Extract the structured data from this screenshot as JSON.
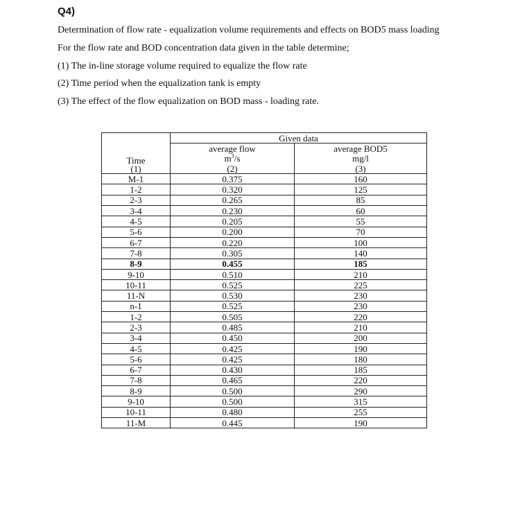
{
  "question_label": "Q4)",
  "lines": [
    "Determination of flow rate - equalization volume requirements and effects on BOD5 mass loading",
    "For the flow rate and BOD concentration data given in the table determine;",
    "(1) The in-line storage volume required to equalize the flow rate",
    "(2) Time period when the equalization tank is empty",
    "(3) The effect of the flow equalization on BOD mass - loading rate."
  ],
  "table": {
    "group_header": "Given data",
    "columns": [
      {
        "name": "Time",
        "unit": "",
        "num": "(1)"
      },
      {
        "name": "average flow",
        "unit_base": "m",
        "unit_sup": "3",
        "unit_rest": "/s",
        "num": "(2)"
      },
      {
        "name": "average BOD5",
        "unit": "mg/l",
        "num": "(3)"
      }
    ],
    "rows": [
      [
        "M-1",
        "0.375",
        "160"
      ],
      [
        "1-2",
        "0.320",
        "125"
      ],
      [
        "2-3",
        "0.265",
        "85"
      ],
      [
        "3-4",
        "0.230",
        "60"
      ],
      [
        "4-5",
        "0.205",
        "55"
      ],
      [
        "5-6",
        "0.200",
        "70"
      ],
      [
        "6-7",
        "0.220",
        "100"
      ],
      [
        "7-8",
        "0.305",
        "140"
      ],
      [
        "8-9",
        "0.455",
        "185"
      ],
      [
        "9-10",
        "0.510",
        "210"
      ],
      [
        "10-11",
        "0.525",
        "225"
      ],
      [
        "11-N",
        "0.530",
        "230"
      ],
      [
        "n-1",
        "0.525",
        "230"
      ],
      [
        "1-2",
        "0.505",
        "220"
      ],
      [
        "2-3",
        "0.485",
        "210"
      ],
      [
        "3-4",
        "0.450",
        "200"
      ],
      [
        "4-5",
        "0.425",
        "190"
      ],
      [
        "5-6",
        "0.425",
        "180"
      ],
      [
        "6-7",
        "0.430",
        "185"
      ],
      [
        "7-8",
        "0.465",
        "220"
      ],
      [
        "8-9",
        "0.500",
        "290"
      ],
      [
        "9-10",
        "0.500",
        "315"
      ],
      [
        "10-11",
        "0.480",
        "255"
      ],
      [
        "11-M",
        "0.445",
        "190"
      ]
    ],
    "bold_row": "8-9"
  }
}
